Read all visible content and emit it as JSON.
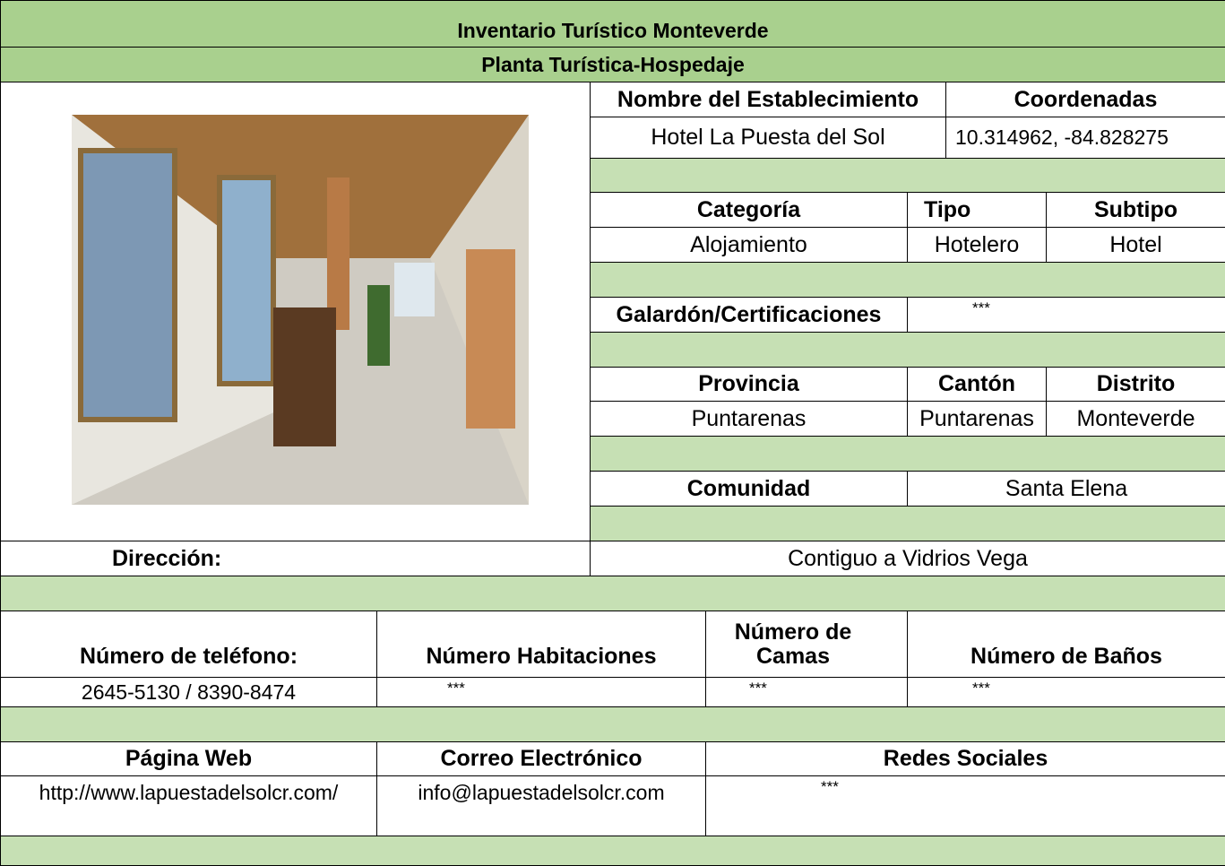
{
  "header": {
    "title": "Inventario Turístico Monteverde",
    "subtitle": "Planta Turística-Hospedaje"
  },
  "establishment": {
    "name_label": "Nombre del Establecimiento",
    "name": "Hotel La Puesta del Sol",
    "coords_label": "Coordenadas",
    "coords": "10.314962, -84.828275"
  },
  "classification": {
    "category_label": "Categoría",
    "category": "Alojamiento",
    "type_label": "Tipo",
    "type": "Hotelero",
    "subtype_label": "Subtipo",
    "subtype": "Hotel"
  },
  "awards": {
    "label": "Galardón/Certificaciones",
    "value": "***"
  },
  "location": {
    "province_label": "Provincia",
    "province": "Puntarenas",
    "canton_label": "Cantón",
    "canton": "Puntarenas",
    "district_label": "Distrito",
    "district": "Monteverde",
    "community_label": "Comunidad",
    "community": "Santa Elena",
    "address_label": "Dirección:",
    "address": "Contiguo a Vidrios Vega"
  },
  "contact": {
    "phone_label": "Número de teléfono:",
    "phone": "2645-5130 / 8390-8474",
    "rooms_label": "Número Habitaciones",
    "rooms": "***",
    "beds_label": "Número de Camas",
    "beds": "***",
    "baths_label": "Número de Baños",
    "baths": "***",
    "web_label": "Página Web",
    "web": "http://www.lapuestadelsolcr.com/",
    "email_label": "Correo Electrónico",
    "email": "info@lapuestadelsolcr.com",
    "social_label": "Redes Sociales",
    "social": "***"
  }
}
